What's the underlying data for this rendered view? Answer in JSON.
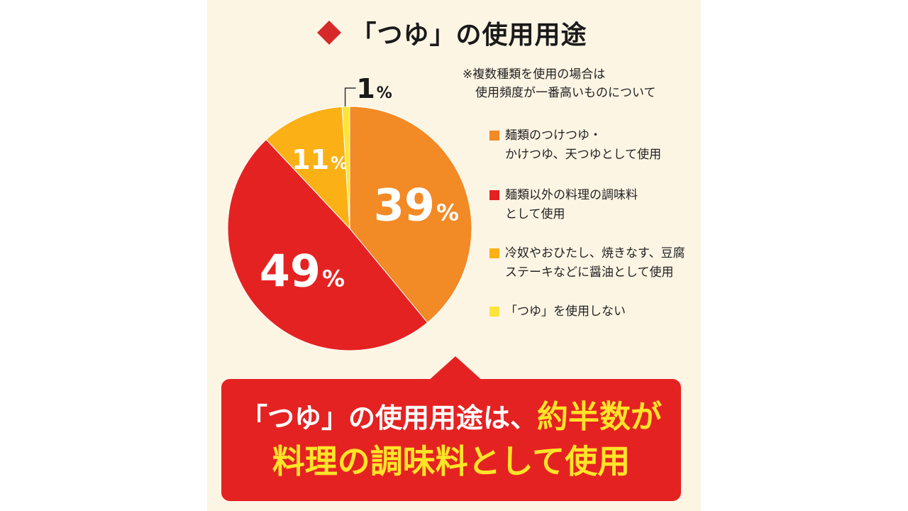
{
  "header": {
    "title": "「つゆ」の使用用途"
  },
  "note": {
    "line1": "※複数種類を使用の場合は",
    "line2": "使用頻度が一番高いものについて"
  },
  "chart_data": {
    "type": "pie",
    "slices": [
      {
        "label": "麺類のつけつゆ・\nかけつゆ、天つゆとして使用",
        "value": 39,
        "display": "39",
        "color": "#f28a26"
      },
      {
        "label": "麺類以外の料理の調味料\nとして使用",
        "value": 49,
        "display": "49",
        "color": "#e52222"
      },
      {
        "label": "冷奴やおひたし、焼きなす、豆腐\nステーキなどに醤油として使用",
        "value": 11,
        "display": "11",
        "color": "#fbb116"
      },
      {
        "label": "「つゆ」を使用しない",
        "value": 1,
        "display": "1",
        "color": "#fce43a"
      }
    ],
    "unit": "%",
    "legend_position": "right"
  },
  "callout": {
    "line1_white": "「つゆ」の使用用途は、",
    "line1_yellow": "約半数が",
    "line2": "料理の調味料として使用"
  }
}
